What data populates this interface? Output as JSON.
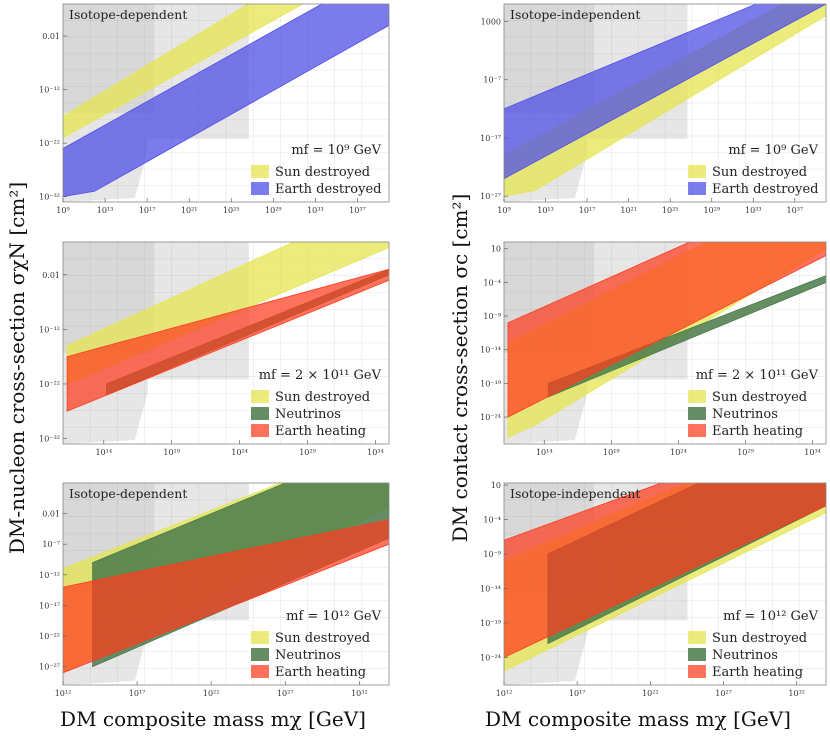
{
  "figure": {
    "xlabel_left": "DM composite mass mχ [GeV]",
    "xlabel_right": "DM composite mass mχ [GeV]",
    "ylabel_left": "DM-nucleon cross-section σχN [cm²]",
    "ylabel_right": "DM contact cross-section σc [cm²]"
  },
  "colors": {
    "sun": "#e6e652",
    "earth_destroyed": "#4f4fe6",
    "neutrinos": "#4a7a4a",
    "earth_heating": "#ff3b1f",
    "excluded_gray": "#9a9a9a",
    "grid": "#e6e6e6"
  },
  "chart_data": [
    {
      "type": "area",
      "title": "Isotope-dependent",
      "mf_label": "m_f = 10^9 GeV",
      "xscale": "log",
      "yscale": "log",
      "xlim": [
        1000000000.0,
        1e+40
      ],
      "ylim": [
        1e-33,
        10000.0
      ],
      "xticks": [
        "10^9",
        "10^13",
        "10^17",
        "10^21",
        "10^25",
        "10^29",
        "10^33",
        "10^37"
      ],
      "yticks": [
        "0.01",
        "10^-12",
        "10^-22",
        "10^-32"
      ],
      "legend": [
        "Sun destroyed",
        "Earth destroyed"
      ],
      "legend_position": "bottom-right",
      "series": [
        {
          "name": "Sun destroyed",
          "lower": [
            [
              9,
              -21
            ],
            [
              40,
              13
            ]
          ],
          "upper": [
            [
              9,
              -17
            ],
            [
              40,
              20
            ]
          ]
        },
        {
          "name": "Earth destroyed",
          "lower": [
            [
              9,
              -32
            ],
            [
              12,
              -31
            ],
            [
              40,
              0
            ]
          ],
          "upper": [
            [
              9,
              -23
            ],
            [
              40,
              11
            ]
          ]
        }
      ]
    },
    {
      "type": "area",
      "title": "Isotope-independent",
      "mf_label": "m_f = 10^9 GeV",
      "xscale": "log",
      "yscale": "log",
      "xlim": [
        1000000000.0,
        1e+40
      ],
      "ylim": [
        1e-28,
        1000000.0
      ],
      "xticks": [
        "10^9",
        "10^13",
        "10^17",
        "10^21",
        "10^25",
        "10^29",
        "10^33",
        "10^37"
      ],
      "yticks": [
        "1000",
        "10^-7",
        "10^-17",
        "10^-27"
      ],
      "legend": [
        "Sun destroyed",
        "Earth destroyed"
      ],
      "legend_position": "bottom-right",
      "series": [
        {
          "name": "Sun destroyed",
          "lower": [
            [
              9,
              -27
            ],
            [
              12,
              -26
            ],
            [
              40,
              4
            ]
          ],
          "upper": [
            [
              9,
              -20
            ],
            [
              40,
              10
            ]
          ]
        },
        {
          "name": "Earth destroyed",
          "lower": [
            [
              9,
              -24
            ],
            [
              40,
              6
            ]
          ],
          "upper": [
            [
              9,
              -12
            ],
            [
              40,
              11
            ]
          ]
        }
      ]
    },
    {
      "type": "area",
      "title": "",
      "mf_label": "m_f = 2 × 10^11 GeV",
      "xscale": "log",
      "yscale": "log",
      "xlim": [
        100000000000.0,
        1e+35
      ],
      "ylim": [
        1e-33,
        10000.0
      ],
      "xticks": [
        "10^14",
        "10^19",
        "10^24",
        "10^29",
        "10^34"
      ],
      "yticks": [
        "0.01",
        "10^-12",
        "10^-22",
        "10^-32"
      ],
      "legend": [
        "Sun destroyed",
        "Neutrinos",
        "Earth heating"
      ],
      "legend_position": "bottom-right",
      "series": [
        {
          "name": "Sun destroyed",
          "lower": [
            [
              11.3,
              -22
            ],
            [
              35,
              3
            ]
          ],
          "upper": [
            [
              11.3,
              -15
            ],
            [
              35,
              12
            ]
          ]
        },
        {
          "name": "Neutrinos",
          "lower": [
            [
              14.2,
              -24
            ],
            [
              35,
              -2
            ]
          ],
          "upper": [
            [
              14.2,
              -22
            ],
            [
              35,
              -1
            ]
          ]
        },
        {
          "name": "Earth heating",
          "lower": [
            [
              11.3,
              -27
            ],
            [
              35,
              -3
            ]
          ],
          "upper": [
            [
              11.3,
              -17
            ],
            [
              35,
              -1
            ]
          ]
        }
      ]
    },
    {
      "type": "area",
      "title": "",
      "mf_label": "m_f = 2 × 10^11 GeV",
      "xscale": "log",
      "yscale": "log",
      "xlim": [
        100000000000.0,
        1e+35
      ],
      "ylim": [
        1e-28,
        100.0
      ],
      "xticks": [
        "10^14",
        "10^19",
        "10^24",
        "10^29",
        "10^34"
      ],
      "yticks": [
        "10",
        "10^-4",
        "10^-9",
        "10^-14",
        "10^-19",
        "10^-24"
      ],
      "legend": [
        "Sun destroyed",
        "Neutrinos",
        "Earth heating"
      ],
      "legend_position": "bottom-right",
      "series": [
        {
          "name": "Sun destroyed",
          "lower": [
            [
              11.3,
              -27
            ],
            [
              13.5,
              -25
            ],
            [
              35,
              1
            ]
          ],
          "upper": [
            [
              11.3,
              -13
            ],
            [
              35,
              11
            ]
          ]
        },
        {
          "name": "Neutrinos",
          "lower": [
            [
              14.3,
              -21
            ],
            [
              35,
              -4
            ]
          ],
          "upper": [
            [
              14.3,
              -19
            ],
            [
              35,
              -3
            ]
          ]
        },
        {
          "name": "Earth heating",
          "lower": [
            [
              11.3,
              -24
            ],
            [
              35,
              0
            ]
          ],
          "upper": [
            [
              11.3,
              -10
            ],
            [
              35,
              11
            ]
          ]
        }
      ]
    },
    {
      "type": "area",
      "title": "Isotope-dependent",
      "mf_label": "m_f = 10^12 GeV",
      "xscale": "log",
      "yscale": "log",
      "xlim": [
        1000000000000.0,
        1e+34
      ],
      "ylim": [
        1e-30,
        1000.0
      ],
      "xticks": [
        "10^12",
        "10^17",
        "10^22",
        "10^27",
        "10^32"
      ],
      "yticks": [
        "0.01",
        "10^-7",
        "10^-12",
        "10^-17",
        "10^-22",
        "10^-27"
      ],
      "legend": [
        "Sun destroyed",
        "Neutrinos",
        "Earth heating"
      ],
      "legend_position": "bottom-right",
      "series": [
        {
          "name": "Sun destroyed",
          "lower": [
            [
              12,
              -28
            ],
            [
              34,
              -1
            ]
          ],
          "upper": [
            [
              12,
              -11
            ],
            [
              34,
              10
            ]
          ]
        },
        {
          "name": "Neutrinos",
          "lower": [
            [
              14,
              -27
            ],
            [
              34,
              -6
            ]
          ],
          "upper": [
            [
              14,
              -10
            ],
            [
              34,
              10
            ]
          ]
        },
        {
          "name": "Earth heating",
          "lower": [
            [
              12,
              -28
            ],
            [
              34,
              -7
            ]
          ],
          "upper": [
            [
              12,
              -14
            ],
            [
              34,
              -3
            ]
          ]
        }
      ]
    },
    {
      "type": "area",
      "title": "Isotope-independent",
      "mf_label": "m_f = 10^12 GeV",
      "xscale": "log",
      "yscale": "log",
      "xlim": [
        1000000000000.0,
        1e+34
      ],
      "ylim": [
        1e-28,
        20.0
      ],
      "xticks": [
        "10^12",
        "10^17",
        "10^22",
        "10^27",
        "10^32"
      ],
      "yticks": [
        "10",
        "10^-4",
        "10^-9",
        "10^-14",
        "10^-19",
        "10^-24"
      ],
      "legend": [
        "Sun destroyed",
        "Neutrinos",
        "Earth heating"
      ],
      "legend_position": "bottom-right",
      "series": [
        {
          "name": "Sun destroyed",
          "lower": [
            [
              12,
              -26
            ],
            [
              34,
              -3
            ]
          ],
          "upper": [
            [
              12,
              -10
            ],
            [
              34,
              10
            ]
          ]
        },
        {
          "name": "Neutrinos",
          "lower": [
            [
              15,
              -22
            ],
            [
              34,
              -2
            ]
          ],
          "upper": [
            [
              15,
              -9
            ],
            [
              34,
              10
            ]
          ]
        },
        {
          "name": "Earth heating",
          "lower": [
            [
              12,
              -24
            ],
            [
              34,
              -2
            ]
          ],
          "upper": [
            [
              12,
              -7
            ],
            [
              34,
              10
            ]
          ]
        }
      ]
    }
  ]
}
